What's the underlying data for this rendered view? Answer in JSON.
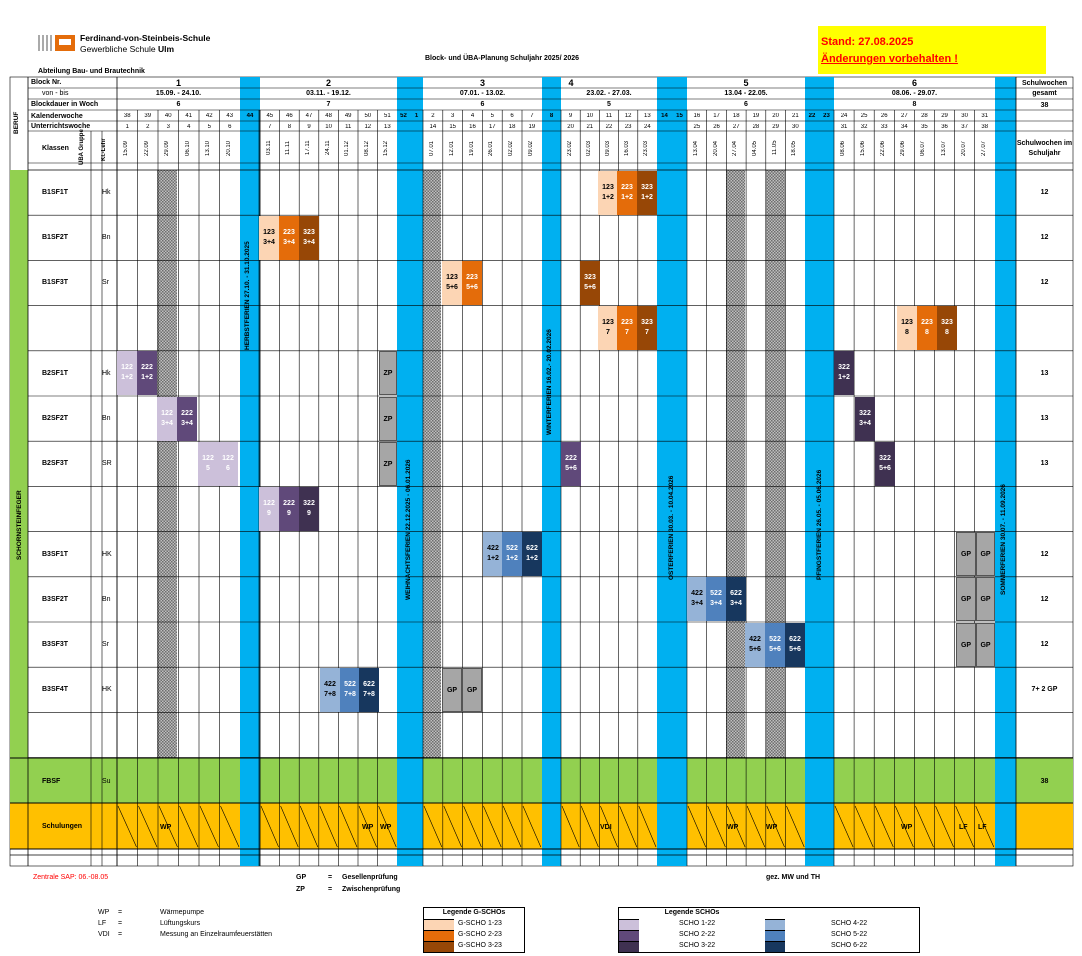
{
  "school": {
    "line1": "Ferdinand-von-Steinbeis-Schule",
    "line2a": "Gewerbliche Schule ",
    "line2b": "Ulm",
    "department": "Abteilung Bau- und Brautechnik"
  },
  "title": "Block- und ÜBA-Planung Schuljahr 2025/ 2026",
  "stand": {
    "line1": "Stand: 27.08.2025",
    "line2": "Änderungen vorbehalten !"
  },
  "colors": {
    "stand_bg": "#ffff00",
    "holiday": "#00b0f0",
    "green": "#92d050",
    "orange": "#ffc000",
    "gray": "#a6a6a6",
    "pattern": "#8c8c8c"
  },
  "row_labels": {
    "block_nr": "Block Nr.",
    "von_bis": "von - bis",
    "blockdauer": "Blockdauer in Woch",
    "kalenderwoche": "Kalenderwoche",
    "unterrichtswoche": "Unterrichtswoche",
    "klassen": "Klassen",
    "uba_gruppe": "ÜBA Gruppe",
    "kl_lehrer": "Kl.-Lehr",
    "beruf": "BERUF",
    "schulwochen_gesamt": "Schulwochen gesamt",
    "schulwochen_im_jahr": "Schulwochen im Schuljahr",
    "gesamt_value": "38"
  },
  "blocks": [
    {
      "nr": "1",
      "range": "15.09. - 24.10.",
      "dauer": "6"
    },
    {
      "nr": "2",
      "range": "03.11. - 19.12.",
      "dauer": "7"
    },
    {
      "nr": "3",
      "range": "07.01. - 13.02.",
      "dauer": "6"
    },
    {
      "nr": "4",
      "range": "23.02. - 27.03.",
      "dauer": "5"
    },
    {
      "nr": "5",
      "range": "13.04 - 22.05.",
      "dauer": "6"
    },
    {
      "nr": "6",
      "range": "08.06. - 29.07.",
      "dauer": "8"
    }
  ],
  "weeks": {
    "b1": {
      "kw": [
        "38",
        "39",
        "40",
        "41",
        "42",
        "43"
      ],
      "uw": [
        "1",
        "2",
        "3",
        "4",
        "5",
        "6"
      ],
      "dates": [
        "15.09",
        "22.09",
        "29.09",
        "06.10",
        "13.10",
        "20.10"
      ]
    },
    "b2": {
      "kw": [
        "45",
        "46",
        "47",
        "48",
        "49",
        "50",
        "51"
      ],
      "uw": [
        "7",
        "8",
        "9",
        "10",
        "11",
        "12",
        "13"
      ],
      "dates": [
        "03.11",
        "11.11",
        "17.11",
        "24.11",
        "01.12",
        "08.12",
        "15.12"
      ]
    },
    "b3": {
      "kw": [
        "2",
        "3",
        "4",
        "5",
        "6",
        "7"
      ],
      "uw": [
        "14",
        "15",
        "16",
        "17",
        "18",
        "19"
      ],
      "dates": [
        "07.01",
        "12.01",
        "19.01",
        "26.01",
        "02.02",
        "09.02"
      ]
    },
    "b4": {
      "kw": [
        "9",
        "10",
        "11",
        "12",
        "13"
      ],
      "uw": [
        "20",
        "21",
        "22",
        "23",
        "24"
      ],
      "dates": [
        "23.02",
        "02.03",
        "09.03",
        "16.03",
        "23.03"
      ]
    },
    "b5": {
      "kw": [
        "16",
        "17",
        "18",
        "19",
        "20",
        "21"
      ],
      "uw": [
        "25",
        "26",
        "27",
        "28",
        "29",
        "30"
      ],
      "dates": [
        "13.04",
        "20.04",
        "27.04",
        "04.05",
        "11.05",
        "18.05"
      ]
    },
    "b6": {
      "kw": [
        "24",
        "25",
        "26",
        "27",
        "28",
        "29",
        "30",
        "31"
      ],
      "uw": [
        "31",
        "32",
        "33",
        "34",
        "35",
        "36",
        "37",
        "38"
      ],
      "dates": [
        "08.06",
        "15.06",
        "22.06",
        "29.06",
        "06.07",
        "13.07",
        "20.07",
        "27.07"
      ]
    },
    "holiday_kw": {
      "h1": "44",
      "h2a": "52",
      "h2b": "1",
      "h3": "8",
      "h4a": "14",
      "h4b": "15",
      "h5a": "22",
      "h5b": "23"
    }
  },
  "holidays": {
    "herbst": "HERBSTFERIEN 27.10. - 31.10.2025",
    "weihnacht": "WEIHNACHTSFERIEN 22.12.2025 - 06.01.2026",
    "winter": "WINTERFERIEN 16.02.- 20.02.2026",
    "oster": "OSTERFERIEN 30.03. - 10.04.2026",
    "pfingst": "PFINGSTFERIEN 26.05. - 05.06.2026",
    "sommer": "SOMMERFERIEN 30.07. - 11.09.2026"
  },
  "beruf_name": "SCHORNSTEINFEGER",
  "classes": [
    {
      "name": "B1SF1T",
      "teacher": "Hk",
      "weeks": "12"
    },
    {
      "name": "B1SF2T",
      "teacher": "Bn",
      "weeks": "12"
    },
    {
      "name": "B1SF3T",
      "teacher": "Sr",
      "weeks": "12"
    },
    {
      "name": "",
      "teacher": "",
      "weeks": ""
    },
    {
      "name": "B2SF1T",
      "teacher": "Hk",
      "weeks": "13"
    },
    {
      "name": "B2SF2T",
      "teacher": "Bn",
      "weeks": "13"
    },
    {
      "name": "B2SF3T",
      "teacher": "SR",
      "weeks": "13"
    },
    {
      "name": "",
      "teacher": "",
      "weeks": ""
    },
    {
      "name": "B3SF1T",
      "teacher": "HK",
      "weeks": "12"
    },
    {
      "name": "B3SF2T",
      "teacher": "Bn",
      "weeks": "12"
    },
    {
      "name": "B3SF3T",
      "teacher": "Sr",
      "weeks": "12"
    },
    {
      "name": "B3SF4T",
      "teacher": "HK",
      "weeks": "7+ 2 GP"
    },
    {
      "name": "",
      "teacher": "",
      "weeks": ""
    }
  ],
  "fbsf": {
    "name": "FBSF",
    "teacher": "Su",
    "weeks": "38"
  },
  "schulungen": {
    "label": "Schulungen",
    "wp": "WP",
    "vdi": "VDI",
    "lf": "LF"
  },
  "blocks_cells": {
    "c01": {
      "n": "123",
      "g": "1+2"
    },
    "c02": {
      "n": "223",
      "g": "1+2"
    },
    "c03": {
      "n": "323",
      "g": "1+2"
    },
    "c04": {
      "n": "123",
      "g": "3+4"
    },
    "c05": {
      "n": "223",
      "g": "3+4"
    },
    "c06": {
      "n": "323",
      "g": "3+4"
    },
    "c07": {
      "n": "123",
      "g": "5+6"
    },
    "c08": {
      "n": "223",
      "g": "5+6"
    },
    "c09": {
      "n": "323",
      "g": "5+6"
    },
    "c10": {
      "n": "123",
      "g": "7"
    },
    "c11": {
      "n": "223",
      "g": "7"
    },
    "c12": {
      "n": "323",
      "g": "7"
    },
    "c13": {
      "n": "123",
      "g": "8"
    },
    "c14": {
      "n": "223",
      "g": "8"
    },
    "c15": {
      "n": "323",
      "g": "8"
    },
    "c16": {
      "n": "122",
      "g": "1+2"
    },
    "c17": {
      "n": "222",
      "g": "1+2"
    },
    "c18": {
      "n": "322",
      "g": "1+2"
    },
    "c19": {
      "n": "122",
      "g": "3+4"
    },
    "c20": {
      "n": "222",
      "g": "3+4"
    },
    "c21": {
      "n": "322",
      "g": "3+4"
    },
    "c22": {
      "n": "122",
      "g": "5"
    },
    "c23": {
      "n": "122",
      "g": "6"
    },
    "c24": {
      "n": "222",
      "g": "5+6"
    },
    "c25": {
      "n": "322",
      "g": "5+6"
    },
    "c26": {
      "n": "122",
      "g": "9"
    },
    "c27": {
      "n": "222",
      "g": "9"
    },
    "c28": {
      "n": "322",
      "g": "9"
    },
    "c29": {
      "n": "422",
      "g": "1+2"
    },
    "c30": {
      "n": "522",
      "g": "1+2"
    },
    "c31": {
      "n": "622",
      "g": "1+2"
    },
    "c32": {
      "n": "422",
      "g": "3+4"
    },
    "c33": {
      "n": "522",
      "g": "3+4"
    },
    "c34": {
      "n": "622",
      "g": "3+4"
    },
    "c35": {
      "n": "422",
      "g": "5+6"
    },
    "c36": {
      "n": "522",
      "g": "5+6"
    },
    "c37": {
      "n": "622",
      "g": "5+6"
    },
    "c38": {
      "n": "422",
      "g": "7+8"
    },
    "c39": {
      "n": "522",
      "g": "7+8"
    },
    "c40": {
      "n": "622",
      "g": "7+8"
    }
  },
  "marks": {
    "zp": "ZP",
    "gp": "GP"
  },
  "footer": {
    "zentrale": "Zentrale SAP: 06.-08.05",
    "gp_abbr": "GP",
    "gp_eq": "=",
    "gp_text": "Gesellenprüfung",
    "zp_abbr": "ZP",
    "zp_eq": "=",
    "zp_text": "Zwischenprüfung",
    "signed": "gez.  MW und TH",
    "wp_abbr": "WP",
    "wp_eq": "=",
    "wp_text": "Wärmepumpe",
    "lf_abbr": "LF",
    "lf_eq": "=",
    "lf_text": "Lüftungskurs",
    "vdi_abbr": "VDI",
    "vdi_eq": "=",
    "vdi_text": "Messung an Einzelraumfeuerstätten"
  },
  "legend_g": {
    "title": "Legende G-SCHOs",
    "items": [
      "G-SCHO 1-23",
      "G-SCHO 2-23",
      "G-SCHO 3-23"
    ]
  },
  "legend_s": {
    "title": "Legende SCHOs",
    "items": [
      "SCHO 1-22",
      "SCHO 2-22",
      "SCHO 3-22",
      "SCHO 4-22",
      "SCHO 5-22",
      "SCHO 6-22"
    ]
  }
}
